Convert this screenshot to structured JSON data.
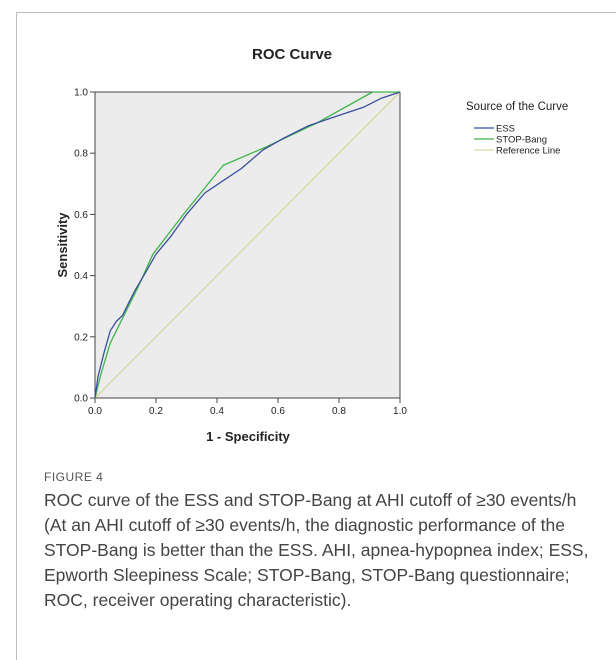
{
  "chart_data": {
    "type": "line",
    "title": "ROC Curve",
    "xlabel": "1 - Specificity",
    "ylabel": "Sensitivity",
    "xlim": [
      0.0,
      1.0
    ],
    "ylim": [
      0.0,
      1.0
    ],
    "xticks": [
      "0.0",
      "0.2",
      "0.4",
      "0.6",
      "0.8",
      "1.0"
    ],
    "yticks": [
      "0.0",
      "0.2",
      "0.4",
      "0.6",
      "0.8",
      "1.0"
    ],
    "grid": false,
    "legend_title": "Source of the Curve",
    "legend_position": "right",
    "plot_background": "#ececec",
    "series": [
      {
        "name": "ESS",
        "color": "#3b4f9e",
        "x": [
          0.0,
          0.01,
          0.03,
          0.05,
          0.07,
          0.09,
          0.11,
          0.13,
          0.16,
          0.2,
          0.25,
          0.3,
          0.36,
          0.42,
          0.48,
          0.55,
          0.62,
          0.7,
          0.76,
          0.82,
          0.88,
          0.94,
          1.0
        ],
        "y": [
          0.0,
          0.07,
          0.15,
          0.22,
          0.25,
          0.27,
          0.31,
          0.35,
          0.4,
          0.47,
          0.53,
          0.6,
          0.67,
          0.71,
          0.75,
          0.81,
          0.85,
          0.89,
          0.91,
          0.93,
          0.95,
          0.98,
          1.0
        ]
      },
      {
        "name": "STOP-Bang",
        "color": "#3db54a",
        "x": [
          0.0,
          0.02,
          0.05,
          0.1,
          0.14,
          0.19,
          0.29,
          0.42,
          0.56,
          0.73,
          0.91,
          1.0
        ],
        "y": [
          0.0,
          0.08,
          0.18,
          0.28,
          0.36,
          0.47,
          0.6,
          0.76,
          0.82,
          0.9,
          1.0,
          1.0
        ]
      },
      {
        "name": "Reference Line",
        "color": "#d9d6a3",
        "x": [
          0.0,
          1.0
        ],
        "y": [
          0.0,
          1.0
        ]
      }
    ]
  },
  "caption": {
    "label": "FIGURE 4",
    "text": "ROC curve of the ESS and STOP-Bang at AHI cutoff of ≥30 events/h (At an AHI cutoff of ≥30 events/h, the diagnostic performance of the STOP-Bang is better than the ESS. AHI, apnea-hypopnea index; ESS, Epworth Sleepiness Scale; STOP-Bang, STOP-Bang questionnaire; ROC, receiver operating characteristic)."
  }
}
